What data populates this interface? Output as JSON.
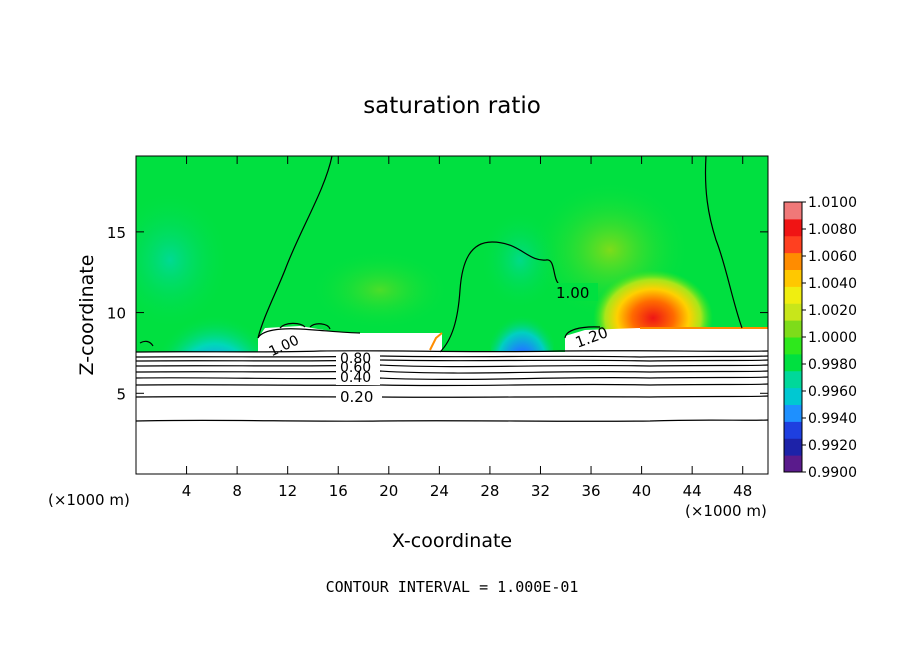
{
  "chart_data": {
    "type": "heatmap",
    "title": "saturation ratio",
    "xlabel": "X-coordinate",
    "ylabel": "Z-coordinate",
    "x_unit_left": "(×1000 m)",
    "x_unit_right": "(×1000 m)",
    "footer": "CONTOUR INTERVAL = 1.000E-01",
    "xlim": [
      0,
      50
    ],
    "ylim": [
      0,
      19.7
    ],
    "x_ticks": [
      4,
      8,
      12,
      16,
      20,
      24,
      28,
      32,
      36,
      40,
      44,
      48
    ],
    "x_tick_labels": [
      "4",
      "8",
      "12",
      "16",
      "20",
      "24",
      "28",
      "32",
      "36",
      "40",
      "44",
      "48"
    ],
    "y_ticks": [
      5,
      10,
      15
    ],
    "y_tick_labels": [
      "5",
      "10",
      "15"
    ],
    "colorbar": {
      "min": 0.99,
      "max": 1.01,
      "tick_labels": [
        "1.0100",
        "1.0080",
        "1.0060",
        "1.0040",
        "1.0020",
        "1.0000",
        "0.9980",
        "0.9960",
        "0.9940",
        "0.9920",
        "0.9900"
      ],
      "colors": [
        "#5a1b8c",
        "#1d22a8",
        "#1e3fe0",
        "#1e90ff",
        "#00c8d2",
        "#00d89a",
        "#00e040",
        "#2ee81c",
        "#7edc1a",
        "#c8e61a",
        "#f0ee10",
        "#ffc800",
        "#ff8c00",
        "#ff4020",
        "#f01414",
        "#f07878"
      ]
    },
    "contour_labels": [
      "1.00",
      "1.20",
      "0.80",
      "0.60",
      "0.40",
      "0.20",
      "1.00"
    ],
    "contour_label_values": [
      1.0,
      1.2,
      0.8,
      0.6,
      0.4,
      0.2,
      1.0
    ]
  }
}
